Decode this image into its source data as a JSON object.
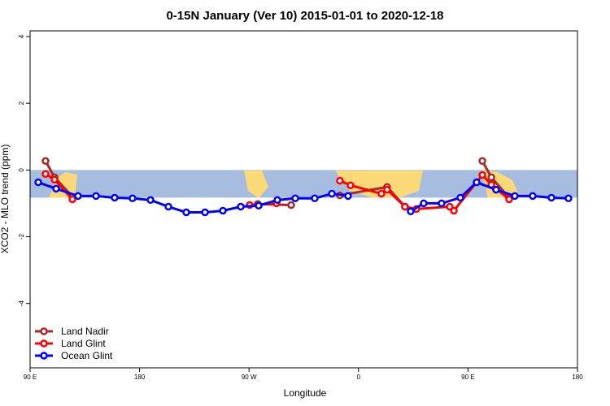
{
  "chart_data": {
    "type": "line",
    "title": "0-15N January (Ver 10)   2015-01-01 to 2020-12-18",
    "x_label": "Longitude",
    "y_label": "XCO2 - MLO trend (ppm)",
    "xlim": [
      90,
      540
    ],
    "ylim": [
      -5.93,
      4.17
    ],
    "xticks": [
      {
        "value": 90,
        "label": "90 E"
      },
      {
        "value": 180,
        "label": "180"
      },
      {
        "value": 270,
        "label": "90 W"
      },
      {
        "value": 360,
        "label": "0"
      },
      {
        "value": 450,
        "label": "90 E"
      },
      {
        "value": 540,
        "label": "180"
      }
    ],
    "yticks": [
      -4,
      -2,
      0,
      2,
      4
    ],
    "band": [
      -0.83,
      0
    ],
    "band_color": "#a7bde0",
    "legend": "bottom-left",
    "series": [
      {
        "name": "Land Nadir",
        "color": "#a52a2a",
        "x": [
          102.7,
          110.1,
          124.8,
          200,
          277.2,
          304.6,
          330,
          344.7,
          383.5,
          398.2,
          430,
          461.8,
          469.2,
          483.8
        ],
        "values": [
          0.27,
          -0.22,
          -0.8,
          null,
          -1.02,
          -1.05,
          null,
          -0.76,
          -0.51,
          -1.1,
          null,
          0.27,
          -0.22,
          -0.83
        ]
      },
      {
        "name": "Land Glint",
        "color": "#ff0000",
        "x": [
          102.7,
          110.1,
          124.8,
          200,
          270.5,
          292.6,
          330,
          344.7,
          353.4,
          378.8,
          383.5,
          398.2,
          407.6,
          435.0,
          438.4,
          461.8,
          469.2,
          483.8
        ],
        "values": [
          -0.12,
          -0.29,
          -0.88,
          null,
          -1.05,
          -1.0,
          null,
          -0.32,
          -0.46,
          -0.71,
          -0.59,
          -1.1,
          -1.17,
          -1.1,
          -1.22,
          -0.15,
          -0.44,
          -0.88
        ]
      },
      {
        "name": "Ocean Glint",
        "color": "#0000ff",
        "x": [
          96.7,
          111.4,
          129.4,
          144.2,
          159.5,
          174.2,
          189.0,
          203.7,
          218.4,
          233.8,
          248.5,
          263.2,
          277.9,
          293.3,
          308.0,
          324.0,
          338.1,
          351.4,
          380,
          402.9,
          413.6,
          428.3,
          443.7,
          457.1,
          473.1,
          488.5,
          503.2,
          518.6,
          532.6
        ],
        "values": [
          -0.37,
          -0.56,
          -0.78,
          -0.78,
          -0.83,
          -0.85,
          -0.9,
          -1.1,
          -1.27,
          -1.27,
          -1.22,
          -1.1,
          -1.07,
          -0.9,
          -0.85,
          -0.85,
          -0.71,
          -0.78,
          null,
          -1.24,
          -1.0,
          -1.0,
          -0.83,
          -0.37,
          -0.59,
          -0.78,
          -0.78,
          -0.83,
          -0.85
        ]
      }
    ]
  }
}
